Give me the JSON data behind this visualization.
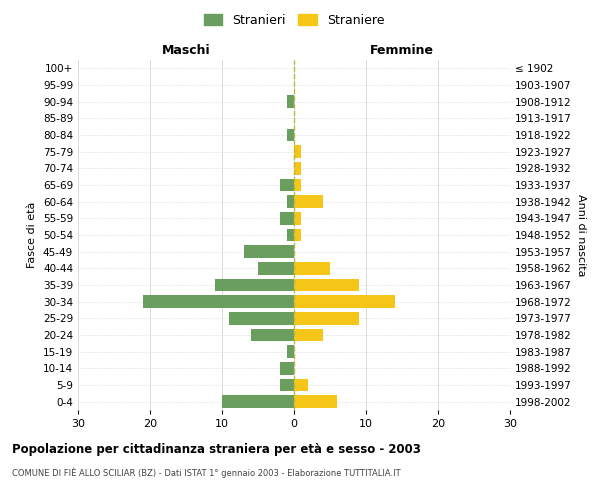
{
  "age_groups_bottom_to_top": [
    "0-4",
    "5-9",
    "10-14",
    "15-19",
    "20-24",
    "25-29",
    "30-34",
    "35-39",
    "40-44",
    "45-49",
    "50-54",
    "55-59",
    "60-64",
    "65-69",
    "70-74",
    "75-79",
    "80-84",
    "85-89",
    "90-94",
    "95-99",
    "100+"
  ],
  "birth_years_bottom_to_top": [
    "1998-2002",
    "1993-1997",
    "1988-1992",
    "1983-1987",
    "1978-1982",
    "1973-1977",
    "1968-1972",
    "1963-1967",
    "1958-1962",
    "1953-1957",
    "1948-1952",
    "1943-1947",
    "1938-1942",
    "1933-1937",
    "1928-1932",
    "1923-1927",
    "1918-1922",
    "1913-1917",
    "1908-1912",
    "1903-1907",
    "≤ 1902"
  ],
  "males_bottom_to_top": [
    10,
    2,
    2,
    1,
    6,
    9,
    21,
    11,
    5,
    7,
    1,
    2,
    1,
    2,
    0,
    0,
    1,
    0,
    1,
    0,
    0
  ],
  "females_bottom_to_top": [
    6,
    2,
    0,
    0,
    4,
    9,
    14,
    9,
    5,
    0,
    1,
    1,
    4,
    1,
    1,
    1,
    0,
    0,
    0,
    0,
    0
  ],
  "male_color": "#6a9e5f",
  "female_color": "#f5c518",
  "center_line_color": "#b8b840",
  "grid_color": "#cccccc",
  "bg_color": "#ffffff",
  "title": "Popolazione per cittadinanza straniera per età e sesso - 2003",
  "subtitle": "COMUNE DI FIÈ ALLO SCILIAR (BZ) - Dati ISTAT 1° gennaio 2003 - Elaborazione TUTTITALIA.IT",
  "label_left": "Maschi",
  "label_right": "Femmine",
  "ylabel_left": "Fasce di età",
  "ylabel_right": "Anni di nascita",
  "legend_male": "Stranieri",
  "legend_female": "Straniere",
  "xlim": 30
}
